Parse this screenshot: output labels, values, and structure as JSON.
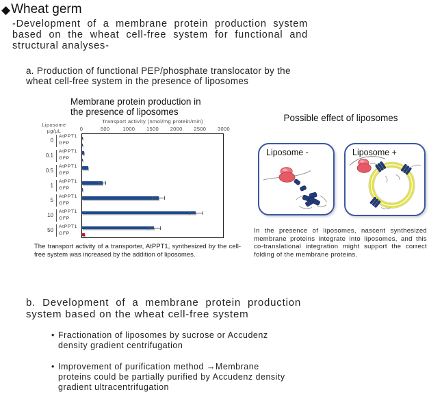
{
  "title": {
    "bullet": "◆",
    "text": "Wheat germ"
  },
  "subtitle": "-Development of a membrane protein production system based on the wheat cell-free system for functional and structural analyses-",
  "section_a": {
    "heading": "a. Production of functional PEP/phosphate translocator by the wheat cell-free system in the presence of liposomes",
    "chart_caption": "The transport activity of a transporter, AtPPT1, synthesized by the cell-free system was increased by the addition of liposomes."
  },
  "chart_data": {
    "type": "bar",
    "title": "Membrane protein production in the presence of liposomes",
    "xlabel": "Transport activity (nmol/mg protein/min)",
    "group_axis_label": [
      "Liposome",
      "µg/µL"
    ],
    "xlim": [
      0,
      3000
    ],
    "xticks": [
      0,
      500,
      1000,
      1500,
      2000,
      2500,
      3000
    ],
    "grid": false,
    "orientation": "horizontal",
    "groups": [
      {
        "group": "0",
        "bars": [
          {
            "label": "AtPPT1",
            "value": 20,
            "error": 0,
            "color": "#1c4a8c"
          },
          {
            "label": "GFP",
            "value": 5,
            "error": 0,
            "color": "#1c4a8c"
          }
        ]
      },
      {
        "group": "0.1",
        "bars": [
          {
            "label": "AtPPT1",
            "value": 45,
            "error": 0,
            "color": "#1c4a8c"
          },
          {
            "label": "GFP",
            "value": 12,
            "error": 0,
            "color": "#1c4a8c"
          }
        ]
      },
      {
        "group": "0.5",
        "bars": [
          {
            "label": "AtPPT1",
            "value": 135,
            "error": 0,
            "color": "#1c4a8c"
          },
          {
            "label": "GFP",
            "value": 0,
            "error": 0,
            "color": "#1c4a8c"
          }
        ]
      },
      {
        "group": "1",
        "bars": [
          {
            "label": "AtPPT1",
            "value": 430,
            "error": 70,
            "color": "#1c4a8c"
          },
          {
            "label": "GFP",
            "value": 8,
            "error": 0,
            "color": "#1c4a8c"
          }
        ]
      },
      {
        "group": "5",
        "bars": [
          {
            "label": "AtPPT1",
            "value": 1610,
            "error": 130,
            "color": "#1c4a8c"
          },
          {
            "label": "GFP",
            "value": 0,
            "error": 0,
            "color": "#1c4a8c"
          }
        ]
      },
      {
        "group": "10",
        "bars": [
          {
            "label": "AtPPT1",
            "value": 2400,
            "error": 140,
            "color": "#1c4a8c"
          },
          {
            "label": "GFP",
            "value": 0,
            "error": 0,
            "color": "#1c4a8c"
          }
        ]
      },
      {
        "group": "50",
        "bars": [
          {
            "label": "AtPPT1",
            "value": 1520,
            "error": 130,
            "color": "#1c4a8c"
          },
          {
            "label": "GFP",
            "value": 60,
            "error": 0,
            "color": "#cc1122"
          }
        ]
      }
    ]
  },
  "right_panel": {
    "title": "Possible effect of liposomes",
    "panel_minus_label": "Liposome -",
    "panel_plus_label": "Liposome +",
    "description": "In the presence of liposomes, nascent synthesized membrane proteins integrate into liposomes, and this co-translational integration might support the correct folding of the membrane proteins."
  },
  "section_b": {
    "heading": "b. Development of a membrane protein production system based on the wheat cell-free system",
    "bullets": [
      "Fractionation of liposomes by sucrose or Accudenz density gradient centrifugation",
      "Improvement of purification method →Membrane proteins could be partially purified by Accudenz density gradient ultracentrifugation"
    ]
  },
  "colors": {
    "bar_blue": "#1c4a8c",
    "bar_red": "#cc1122",
    "panel_border": "#3a56a5",
    "liposome_yellow": "#e2e23e",
    "ribosome_pink": "#e8606c"
  }
}
